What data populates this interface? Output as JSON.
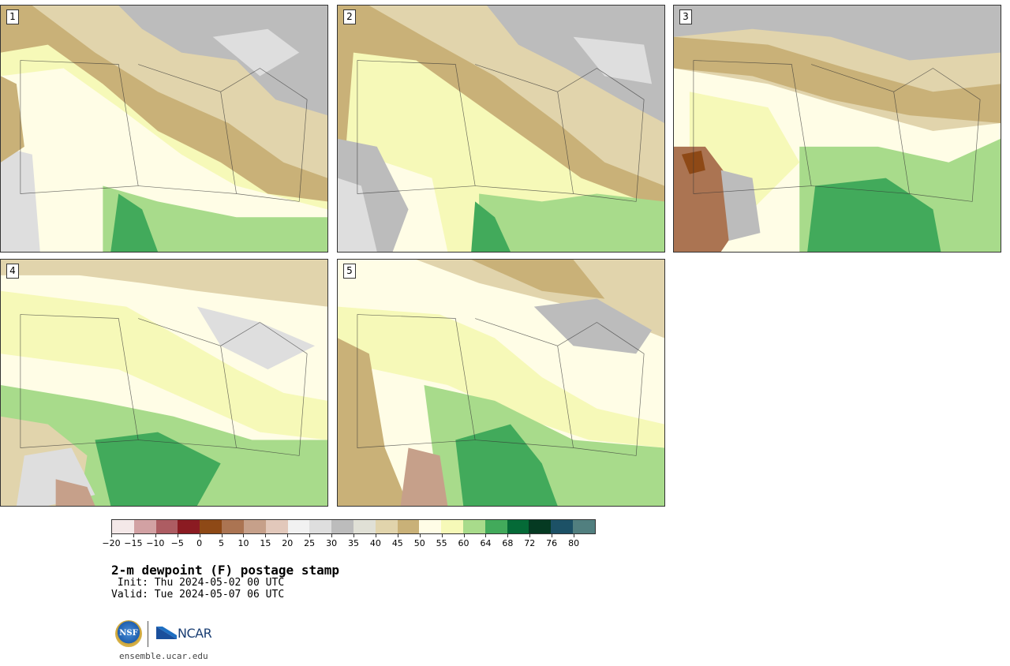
{
  "panels": [
    {
      "label": "1"
    },
    {
      "label": "2"
    },
    {
      "label": "3"
    },
    {
      "label": "4"
    },
    {
      "label": "5"
    }
  ],
  "colorbar": {
    "colors": [
      "#f4e8e8",
      "#d2a1a3",
      "#ad5c62",
      "#8b1b22",
      "#8e4916",
      "#ab7452",
      "#c6a08a",
      "#e2c8bb",
      "#f1f1f1",
      "#dedede",
      "#bcbcbc",
      "#e0e0d6",
      "#e1d4ac",
      "#c9b178",
      "#fffde6",
      "#f6f9b8",
      "#a8db8b",
      "#42aa5b",
      "#056a37",
      "#053a22",
      "#1c5166",
      "#517f7f"
    ],
    "tick_labels": [
      "−20",
      "−15",
      "−10",
      "−5",
      "0",
      "5",
      "10",
      "15",
      "20",
      "25",
      "30",
      "35",
      "40",
      "45",
      "50",
      "55",
      "60",
      "64",
      "68",
      "72",
      "76",
      "80"
    ]
  },
  "title": "2-m dewpoint (F) postage stamp",
  "init": " Init: Thu 2024-05-02 00 UTC",
  "valid": "Valid: Tue 2024-05-07 06 UTC",
  "logos": {
    "nsf": "NSF",
    "ncar": "NCAR"
  },
  "site": "ensemble.ucar.edu"
}
